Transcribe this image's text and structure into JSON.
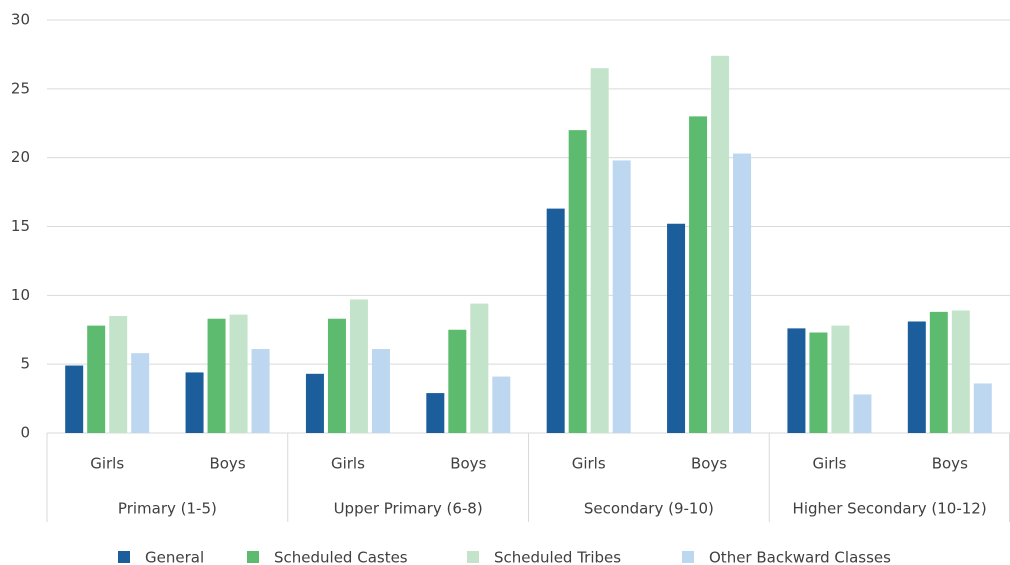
{
  "chart_data": {
    "type": "bar",
    "categories": [
      "Girls",
      "Boys",
      "Girls",
      "Boys",
      "Girls",
      "Boys",
      "Girls",
      "Boys"
    ],
    "groups": [
      "Primary (1-5)",
      "Upper Primary (6-8)",
      "Secondary (9-10)",
      "Higher Secondary (10-12)"
    ],
    "series": [
      {
        "name": "General",
        "color": "#1b5e9b",
        "values": [
          4.9,
          4.4,
          4.3,
          2.9,
          16.3,
          15.2,
          7.6,
          8.1
        ]
      },
      {
        "name": "Scheduled Castes",
        "color": "#5dbb6f",
        "values": [
          7.8,
          8.3,
          8.3,
          7.5,
          22.0,
          23.0,
          7.3,
          8.8
        ]
      },
      {
        "name": "Scheduled Tribes",
        "color": "#c3e4ca",
        "values": [
          8.5,
          8.6,
          9.7,
          9.4,
          26.5,
          27.4,
          7.8,
          8.9
        ]
      },
      {
        "name": "Other Backward Classes",
        "color": "#bdd7f0",
        "values": [
          5.8,
          6.1,
          6.1,
          4.1,
          19.8,
          20.3,
          2.8,
          3.6
        ]
      }
    ],
    "ylim": [
      0,
      30
    ],
    "yticks": [
      0,
      5,
      10,
      15,
      20,
      25,
      30
    ],
    "grid": true,
    "legend": "bottom"
  }
}
